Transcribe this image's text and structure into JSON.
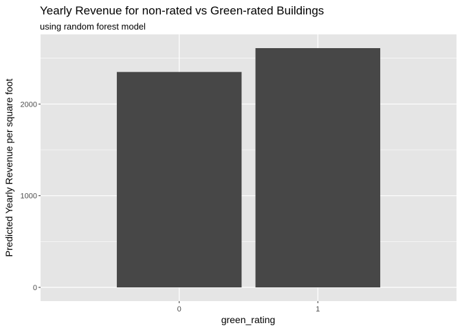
{
  "chart_data": {
    "type": "bar",
    "title": "Yearly Revenue for non-rated vs Green-rated Buildings",
    "subtitle": "using random forest model",
    "xlabel": "green_rating",
    "ylabel": "Predicted Yearly Revenue per square foot",
    "categories": [
      "0",
      "1"
    ],
    "values": [
      2350,
      2610
    ],
    "ylim": [
      -150,
      2760
    ],
    "yticks": [
      0,
      1000,
      2000
    ],
    "ytick_labels": [
      "0",
      "1000",
      "2000"
    ],
    "grid": true,
    "legend": "none",
    "colors": {
      "panel": "#e5e5e5",
      "grid_major": "#ffffff",
      "bar": "#474747",
      "tick_text": "#4d4d4d"
    }
  }
}
